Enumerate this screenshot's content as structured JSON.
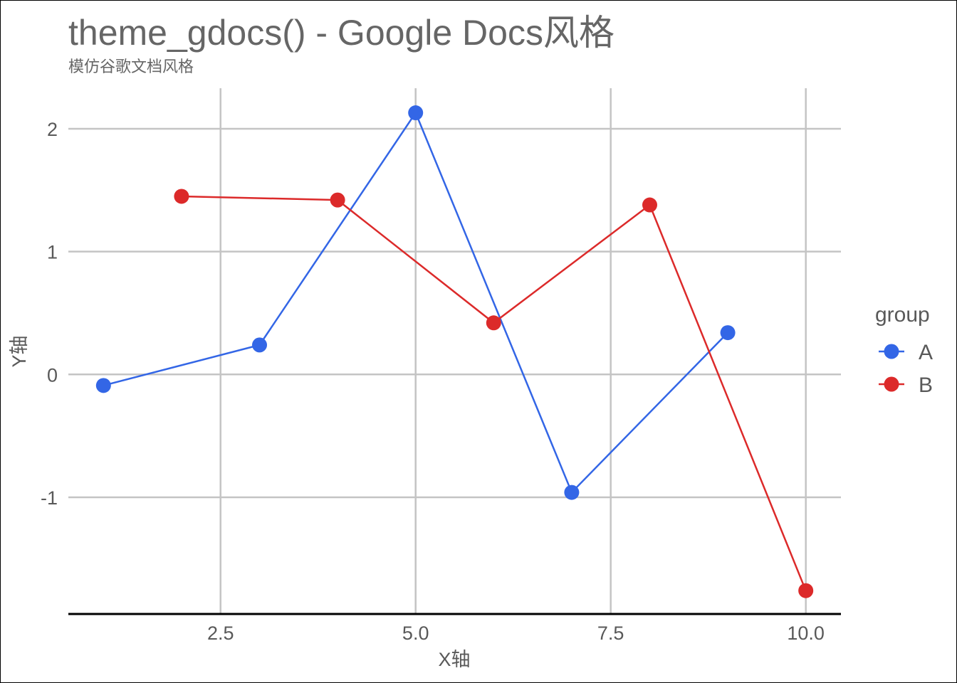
{
  "title": "theme_gdocs() - Google Docs风格",
  "subtitle": "模仿谷歌文档风格",
  "colors": {
    "background": "#ffffff",
    "grid": "#c4c4c4",
    "axis_line": "#000000",
    "text": "#666666",
    "series_A": "#3366e6",
    "series_B": "#dc2a2a"
  },
  "chart_data": {
    "type": "line",
    "title": "theme_gdocs() - Google Docs风格",
    "subtitle": "模仿谷歌文档风格",
    "xlabel": "X轴",
    "ylabel": "Y轴",
    "xlim": [
      0.55,
      10.45
    ],
    "ylim": [
      -1.95,
      2.33
    ],
    "x_ticks": [
      2.5,
      5.0,
      7.5,
      10.0
    ],
    "x_tick_labels": [
      "2.5",
      "5.0",
      "7.5",
      "10.0"
    ],
    "y_ticks": [
      -1,
      0,
      1,
      2
    ],
    "y_tick_labels": [
      "-1",
      "0",
      "1",
      "2"
    ],
    "grid": true,
    "legend_title": "group",
    "legend_position": "right",
    "series": [
      {
        "name": "A",
        "color": "#3366e6",
        "x": [
          1,
          3,
          5,
          7,
          9
        ],
        "y": [
          -0.09,
          0.24,
          2.13,
          -0.96,
          0.34
        ]
      },
      {
        "name": "B",
        "color": "#dc2a2a",
        "x": [
          2,
          4,
          6,
          8,
          10
        ],
        "y": [
          1.45,
          1.42,
          0.42,
          1.38,
          -1.76
        ]
      }
    ]
  }
}
